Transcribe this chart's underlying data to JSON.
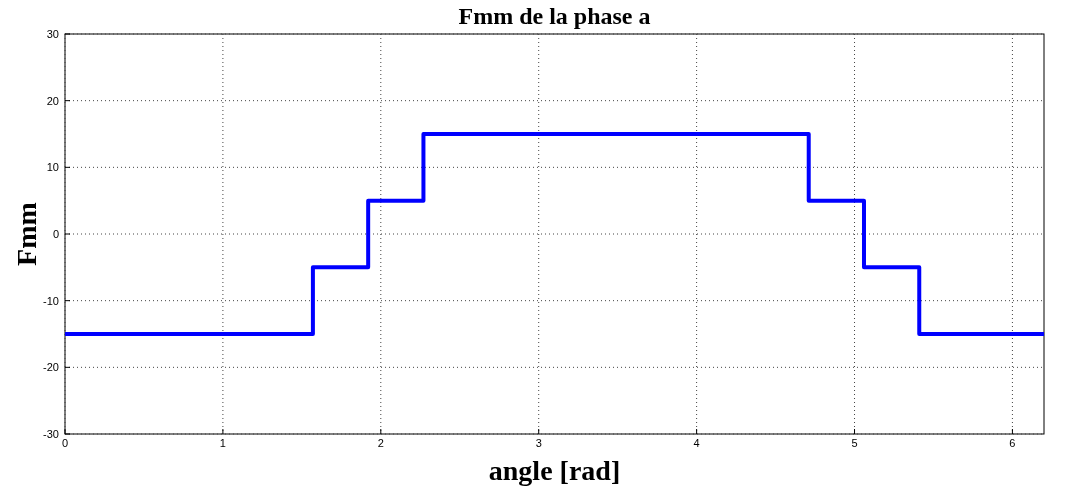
{
  "chart_data": {
    "type": "step",
    "title": "Fmm de la phase a",
    "xlabel": "angle [rad]",
    "ylabel": "Fmm",
    "x": [
      0,
      1.57,
      1.92,
      2.27,
      4.71,
      5.06,
      5.41,
      6.2
    ],
    "series": [
      {
        "color": "#0000ff",
        "values": [
          -15,
          -5,
          5,
          15,
          5,
          -5,
          -15,
          -15
        ]
      }
    ],
    "xlim": [
      0,
      6.2
    ],
    "xticks": [
      0,
      1,
      2,
      3,
      4,
      5,
      6
    ],
    "ylim": [
      -30,
      30
    ],
    "yticks": [
      -30,
      -20,
      -10,
      0,
      10,
      20,
      30
    ],
    "grid": true,
    "line_style": "solid"
  }
}
